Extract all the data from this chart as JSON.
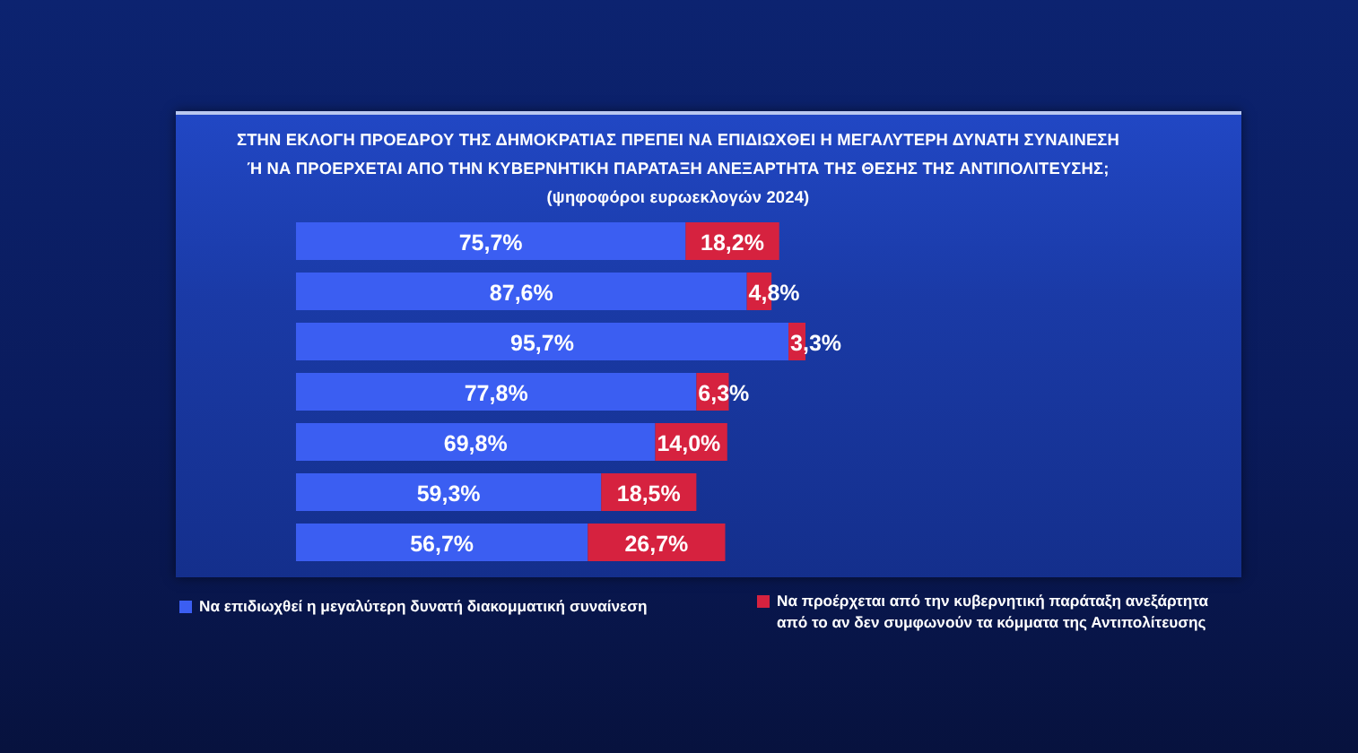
{
  "chart_data": {
    "type": "bar",
    "orientation": "horizontal",
    "stacked": true,
    "title": "ΣΤΗΝ ΕΚΛΟΓΗ ΠΡΟΕΔΡΟΥ ΤΗΣ ΔΗΜΟΚΡΑΤΙΑΣ ΠΡΕΠΕΙ ΝΑ ΕΠΙΔΙΩΧΘΕΙ Η ΜΕΓΑΛΥΤΕΡΗ ΔΥΝΑΤΗ ΣΥΝΑΙΝΕΣΗ Ή ΝΑ ΠΡΟΕΡΧΕΤΑΙ ΑΠΟ ΤΗΝ ΚΥΒΕΡΝΗΤΙΚΗ ΠΑΡΑΤΑΞΗ ΑΝΕΞΑΡΤΗΤΑ ΤΗΣ ΘΕΣΗΣ ΤΗΣ ΑΝΤΙΠΟΛΙΤΕΥΣΗΣ;",
    "subtitle": "(ψηφοφόροι ευρωεκλογών 2024)",
    "categories": [
      null,
      null,
      null,
      null,
      null,
      null,
      null
    ],
    "series": [
      {
        "name": "Να επιδιωχθεί η μεγαλύτερη δυνατή διακομματική συναίνεση",
        "color": "#3b5ef2",
        "values": [
          75.7,
          87.6,
          95.7,
          77.8,
          69.8,
          59.3,
          56.7
        ],
        "value_labels": [
          "75,7%",
          "87,6%",
          "95,7%",
          "77,8%",
          "69,8%",
          "59,3%",
          "56,7%"
        ]
      },
      {
        "name": "Να προέρχεται από την κυβερνητική παράταξη ανεξάρτητα από το αν δεν συμφωνούν τα κόμματα της Αντιπολίτευσης",
        "color": "#d6223f",
        "values": [
          18.2,
          4.8,
          3.3,
          6.3,
          14.0,
          18.5,
          26.7
        ],
        "value_labels": [
          "18,2%",
          "4,8%",
          "3,3%",
          "6,3%",
          "14,0%",
          "18,5%",
          "26,7%"
        ]
      }
    ],
    "legend": "bottom"
  }
}
